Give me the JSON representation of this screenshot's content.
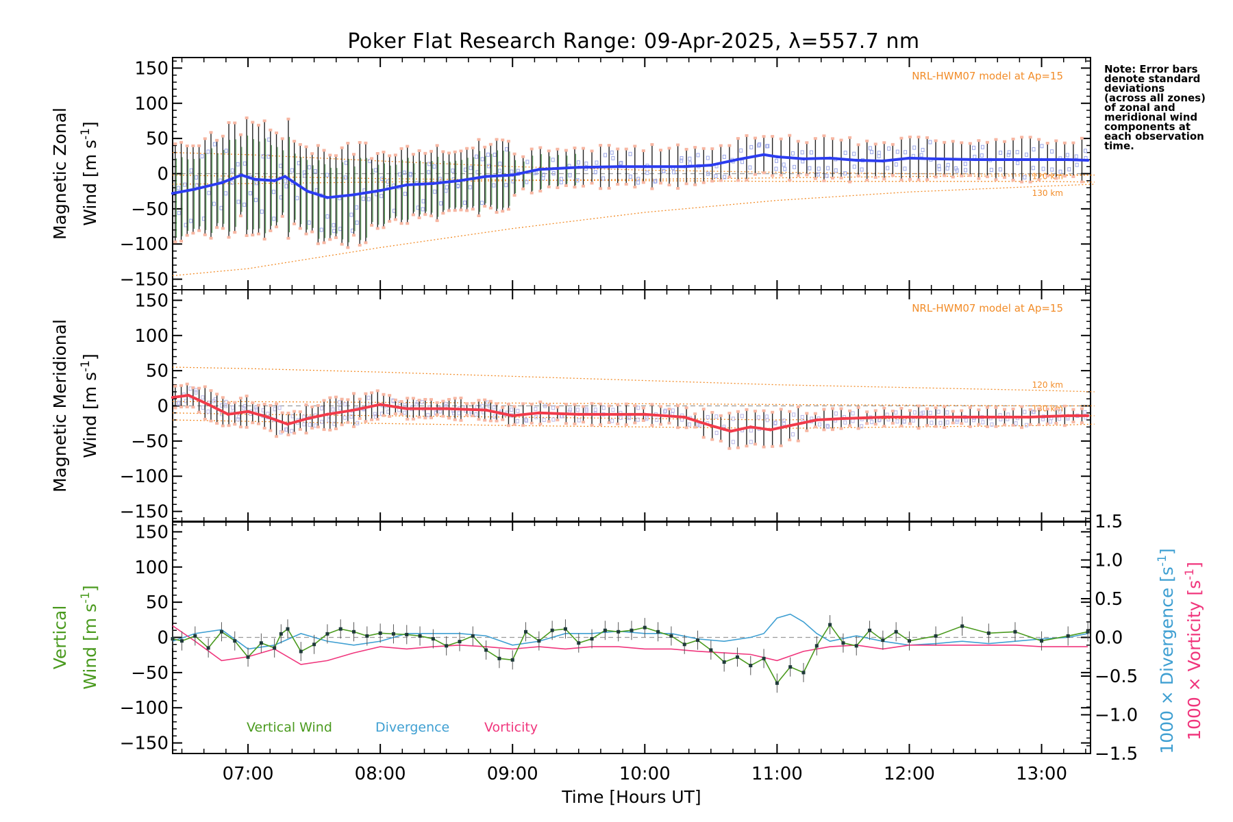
{
  "title": "Poker Flat Research Range: 09-Apr-2025, λ=557.7 nm",
  "note_lines": [
    "Note: Error bars",
    "denote standard",
    "deviations",
    "(across all zones)",
    "of zonal and",
    "meridional wind",
    "components at",
    "each observation",
    "time."
  ],
  "colors": {
    "zonal": "#2b3cf0",
    "meridional": "#f23a4a",
    "vertical": "#4a9a1e",
    "divergence": "#3e9fd2",
    "vorticity": "#f0357c",
    "model": "#f28c28",
    "zone_points_zonal": "#9aa6e8",
    "zone_points_merid": "#b8b6e6",
    "zone_points_orange": "#f7b7a3"
  },
  "chart_data": [
    {
      "type": "line",
      "panel": "zonal",
      "ylabel": "Magnetic Zonal",
      "ylabel2": "Wind [m s",
      "ylabel2_sup": "-1",
      "ylabel2_end": "]",
      "ylim": [
        -165,
        165
      ],
      "yticks": [
        "150",
        "100",
        "50",
        "0",
        "−50",
        "−100",
        "−150"
      ],
      "model_label": "NRL-HWM07 model at Ap=15",
      "model_alt_labels": [
        "120 km",
        "130 km"
      ],
      "series": [
        {
          "role": "zonal",
          "x": [
            6.43,
            6.6,
            6.8,
            6.95,
            7.05,
            7.2,
            7.28,
            7.45,
            7.6,
            7.8,
            8.0,
            8.2,
            8.4,
            8.6,
            8.8,
            9.0,
            9.2,
            9.5,
            9.8,
            10.0,
            10.3,
            10.5,
            10.7,
            10.9,
            11.0,
            11.2,
            11.4,
            11.6,
            11.8,
            12.0,
            12.2,
            12.5,
            12.8,
            13.0,
            13.2,
            13.35
          ],
          "y": [
            -28,
            -22,
            -13,
            -2,
            -8,
            -10,
            -4,
            -25,
            -34,
            -30,
            -24,
            -16,
            -14,
            -10,
            -4,
            -2,
            6,
            9,
            10,
            10,
            10,
            12,
            20,
            27,
            24,
            21,
            22,
            19,
            18,
            22,
            21,
            20,
            20,
            20,
            20,
            19
          ]
        },
        {
          "role": "model",
          "name": "120 km",
          "x": [
            6.43,
            7,
            8,
            9,
            10,
            11,
            12,
            13,
            13.4
          ],
          "y": [
            30,
            27,
            18,
            10,
            5,
            2,
            0,
            -1,
            -2
          ]
        },
        {
          "role": "model",
          "name": "130 km",
          "x": [
            6.43,
            7,
            8,
            9,
            10,
            11,
            12,
            13,
            13.4
          ],
          "y": [
            -2,
            -4,
            -7,
            -9,
            -10,
            -11,
            -11,
            -11,
            -12
          ]
        },
        {
          "role": "model",
          "x": [
            6.43,
            7,
            8,
            9,
            10,
            11,
            12,
            13,
            13.4
          ],
          "y": [
            -145,
            -135,
            -105,
            -78,
            -55,
            -38,
            -26,
            -18,
            -15
          ]
        },
        {
          "role": "model",
          "x": [
            6.43,
            7,
            8,
            9,
            10,
            11,
            12,
            13,
            13.4
          ],
          "y": [
            -15,
            -14,
            -12,
            -10,
            -8,
            -6,
            -4,
            -3,
            -2
          ]
        }
      ]
    },
    {
      "type": "line",
      "panel": "meridional",
      "ylabel": "Magnetic Meridional",
      "ylabel2": "Wind [m s",
      "ylabel2_sup": "-1",
      "ylabel2_end": "]",
      "ylim": [
        -165,
        165
      ],
      "yticks": [
        "150",
        "100",
        "50",
        "0",
        "−50",
        "−100",
        "−150"
      ],
      "model_label": "NRL-HWM07 model at Ap=15",
      "model_alt_labels": [
        "120 km",
        "130 km"
      ],
      "series": [
        {
          "role": "meridional",
          "x": [
            6.43,
            6.55,
            6.7,
            6.85,
            7.0,
            7.15,
            7.3,
            7.45,
            7.6,
            7.8,
            8.0,
            8.2,
            8.5,
            8.8,
            9.0,
            9.2,
            9.5,
            9.8,
            10.0,
            10.3,
            10.5,
            10.65,
            10.8,
            10.95,
            11.1,
            11.3,
            11.5,
            11.8,
            12.0,
            12.3,
            12.6,
            12.9,
            13.2,
            13.35
          ],
          "y": [
            12,
            15,
            2,
            -12,
            -8,
            -16,
            -26,
            -18,
            -12,
            -6,
            2,
            -4,
            -4,
            -6,
            -14,
            -10,
            -12,
            -12,
            -12,
            -16,
            -28,
            -36,
            -30,
            -34,
            -28,
            -20,
            -18,
            -16,
            -16,
            -16,
            -16,
            -16,
            -14,
            -14
          ]
        },
        {
          "role": "model",
          "name": "120 km",
          "x": [
            6.43,
            7,
            8,
            9,
            10,
            11,
            12,
            13,
            13.4
          ],
          "y": [
            55,
            53,
            48,
            42,
            36,
            30,
            26,
            22,
            20
          ]
        },
        {
          "role": "model",
          "name": "130 km",
          "x": [
            6.43,
            7,
            8,
            9,
            10,
            11,
            12,
            13,
            13.4
          ],
          "y": [
            6,
            6,
            5,
            4,
            3,
            2,
            1,
            0,
            0
          ]
        },
        {
          "role": "model",
          "x": [
            6.43,
            7,
            8,
            9,
            10,
            11,
            12,
            13,
            13.4
          ],
          "y": [
            -20,
            -22,
            -25,
            -28,
            -30,
            -32,
            -30,
            -28,
            -26
          ]
        },
        {
          "role": "model",
          "x": [
            6.43,
            7,
            8,
            9,
            10,
            11,
            12,
            13,
            13.4
          ],
          "y": [
            -10,
            -12,
            -14,
            -16,
            -18,
            -20,
            -18,
            -16,
            -14
          ]
        }
      ]
    },
    {
      "type": "line",
      "panel": "vertical",
      "ylabel": "Vertical",
      "ylabel2": "Wind [m s",
      "ylabel2_sup": "-1",
      "ylabel2_end": "]",
      "ylim": [
        -165,
        165
      ],
      "yticks": [
        "150",
        "100",
        "50",
        "0",
        "−50",
        "−100",
        "−150"
      ],
      "y2ticks": [
        "1.5",
        "1.0",
        "0.5",
        "0.0",
        "−0.5",
        "−1.0",
        "−1.5"
      ],
      "y2lim": [
        -1.5,
        1.5
      ],
      "y2label_div": "1000 × Divergence [s",
      "y2label_vor": "1000 × Vorticity [s",
      "y2label_sup": "-1",
      "y2label_end": "]",
      "legend": [
        "Vertical Wind",
        "Divergence",
        "Vorticity"
      ],
      "xlabel": "Time [Hours UT]",
      "xticks": [
        "07:00",
        "08:00",
        "09:00",
        "10:00",
        "11:00",
        "12:00",
        "13:00"
      ],
      "xtick_values": [
        7,
        8,
        9,
        10,
        11,
        12,
        13
      ],
      "xlim": [
        6.43,
        13.37
      ],
      "series": [
        {
          "role": "vertical",
          "name": "Vertical Wind",
          "x": [
            6.43,
            6.5,
            6.6,
            6.7,
            6.8,
            6.9,
            7.0,
            7.1,
            7.2,
            7.25,
            7.3,
            7.4,
            7.5,
            7.6,
            7.7,
            7.8,
            7.9,
            8.0,
            8.1,
            8.2,
            8.3,
            8.4,
            8.5,
            8.6,
            8.7,
            8.8,
            8.9,
            9.0,
            9.1,
            9.2,
            9.3,
            9.4,
            9.5,
            9.6,
            9.7,
            9.8,
            9.9,
            10.0,
            10.1,
            10.2,
            10.3,
            10.4,
            10.5,
            10.6,
            10.7,
            10.8,
            10.9,
            11.0,
            11.1,
            11.2,
            11.3,
            11.4,
            11.5,
            11.6,
            11.7,
            11.8,
            11.9,
            12.0,
            12.2,
            12.4,
            12.6,
            12.8,
            13.0,
            13.2,
            13.35
          ],
          "y": [
            -2,
            -5,
            2,
            -15,
            8,
            -5,
            -28,
            -8,
            -15,
            5,
            12,
            -20,
            -10,
            5,
            12,
            8,
            2,
            6,
            5,
            4,
            2,
            -2,
            -12,
            -6,
            2,
            -18,
            -30,
            -32,
            8,
            -5,
            10,
            12,
            -8,
            -2,
            10,
            8,
            10,
            14,
            8,
            2,
            -10,
            -4,
            -18,
            -35,
            -28,
            -40,
            -30,
            -65,
            -42,
            -50,
            -12,
            18,
            -8,
            -12,
            10,
            -4,
            8,
            -5,
            2,
            16,
            6,
            8,
            -5,
            2,
            8
          ]
        },
        {
          "role": "divergence",
          "name": "Divergence",
          "x": [
            6.43,
            6.6,
            6.8,
            7.0,
            7.2,
            7.4,
            7.6,
            7.8,
            8.0,
            8.2,
            8.4,
            8.6,
            8.8,
            9.0,
            9.2,
            9.4,
            9.6,
            9.8,
            10.0,
            10.2,
            10.4,
            10.6,
            10.8,
            10.9,
            11.0,
            11.1,
            11.2,
            11.3,
            11.4,
            11.6,
            11.8,
            12.0,
            12.2,
            12.4,
            12.6,
            12.8,
            13.0,
            13.2,
            13.35
          ],
          "y": [
            -0.05,
            0.05,
            0.1,
            -0.15,
            -0.1,
            0.05,
            -0.05,
            -0.1,
            -0.05,
            0.05,
            0.05,
            0.05,
            0.02,
            -0.1,
            -0.05,
            0.05,
            0.05,
            0.08,
            0.05,
            0.05,
            -0.02,
            -0.05,
            0.0,
            0.05,
            0.25,
            0.3,
            0.2,
            0.05,
            -0.05,
            0.02,
            -0.05,
            -0.1,
            -0.08,
            -0.05,
            -0.08,
            -0.05,
            -0.02,
            0.0,
            0.05
          ]
        },
        {
          "role": "vorticity",
          "name": "Vorticity",
          "x": [
            6.43,
            6.6,
            6.8,
            7.0,
            7.2,
            7.4,
            7.6,
            7.8,
            8.0,
            8.2,
            8.4,
            8.6,
            8.8,
            9.0,
            9.2,
            9.4,
            9.6,
            9.8,
            10.0,
            10.2,
            10.4,
            10.6,
            10.8,
            11.0,
            11.2,
            11.4,
            11.6,
            11.8,
            12.0,
            12.4,
            12.8,
            13.0,
            13.35
          ],
          "y": [
            0.15,
            -0.05,
            -0.3,
            -0.25,
            -0.15,
            -0.35,
            -0.3,
            -0.2,
            -0.12,
            -0.15,
            -0.12,
            -0.1,
            -0.12,
            -0.15,
            -0.12,
            -0.15,
            -0.12,
            -0.12,
            -0.15,
            -0.15,
            -0.18,
            -0.2,
            -0.22,
            -0.3,
            -0.18,
            -0.12,
            -0.1,
            -0.15,
            -0.1,
            -0.1,
            -0.1,
            -0.12,
            -0.12
          ]
        }
      ]
    }
  ]
}
